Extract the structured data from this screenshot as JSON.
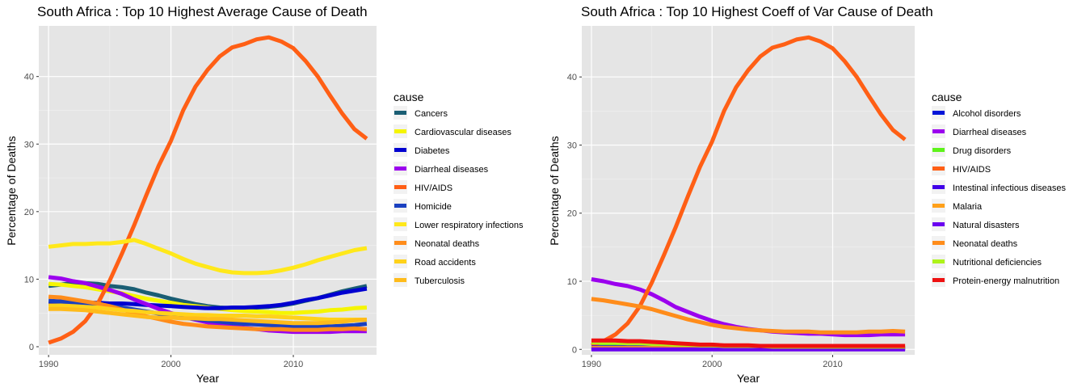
{
  "chart_data": [
    {
      "type": "line",
      "title": "South Africa : Top  10  Highest Average Cause of Death",
      "xlabel": "Year",
      "ylabel": "Percentage of Deaths",
      "xlim": [
        1989.2,
        2016.8
      ],
      "ylim": [
        -1.2,
        47.5
      ],
      "xticks": [
        1990,
        2000,
        2010
      ],
      "yticks": [
        0,
        10,
        20,
        30,
        40
      ],
      "grid": true,
      "legend_title": "cause",
      "legend_position": "right",
      "x": [
        1990,
        1991,
        1992,
        1993,
        1994,
        1995,
        1996,
        1997,
        1998,
        1999,
        2000,
        2001,
        2002,
        2003,
        2004,
        2005,
        2006,
        2007,
        2008,
        2009,
        2010,
        2011,
        2012,
        2013,
        2014,
        2015,
        2016
      ],
      "series": [
        {
          "name": "Cancers",
          "color": "#1a5e74",
          "values": [
            9.0,
            9.2,
            9.4,
            9.4,
            9.3,
            9.0,
            8.8,
            8.5,
            8.0,
            7.6,
            7.1,
            6.7,
            6.3,
            6.0,
            5.8,
            5.7,
            5.7,
            5.8,
            5.9,
            6.1,
            6.4,
            6.8,
            7.2,
            7.7,
            8.2,
            8.6,
            9.0
          ]
        },
        {
          "name": "Cardiovascular diseases",
          "color": "#f5f500",
          "values": [
            9.3,
            9.2,
            9.0,
            8.8,
            8.5,
            8.2,
            7.9,
            7.5,
            7.1,
            6.8,
            6.5,
            6.2,
            6.0,
            5.8,
            5.6,
            5.4,
            5.3,
            5.2,
            5.1,
            5.0,
            5.0,
            5.1,
            5.2,
            5.4,
            5.5,
            5.7,
            5.8
          ]
        },
        {
          "name": "Diabetes",
          "color": "#0000d0",
          "values": [
            6.3,
            6.4,
            6.5,
            6.5,
            6.5,
            6.4,
            6.4,
            6.3,
            6.2,
            6.1,
            6.0,
            5.9,
            5.8,
            5.7,
            5.7,
            5.8,
            5.8,
            5.9,
            6.0,
            6.2,
            6.5,
            6.9,
            7.2,
            7.6,
            8.0,
            8.3,
            8.6
          ]
        },
        {
          "name": "Diarrheal diseases",
          "color": "#9b00ee",
          "values": [
            10.3,
            10.1,
            9.7,
            9.4,
            8.9,
            8.4,
            7.8,
            7.0,
            6.3,
            5.6,
            5.0,
            4.4,
            4.0,
            3.6,
            3.2,
            3.0,
            2.8,
            2.6,
            2.4,
            2.3,
            2.2,
            2.2,
            2.2,
            2.2,
            2.3,
            2.3,
            2.3
          ]
        },
        {
          "name": "HIV/AIDS",
          "color": "#ff5f15",
          "values": [
            0.6,
            1.2,
            2.2,
            3.8,
            6.3,
            9.8,
            13.8,
            18.0,
            22.5,
            26.8,
            30.5,
            35.0,
            38.5,
            41.0,
            43.0,
            44.3,
            44.8,
            45.5,
            45.8,
            45.2,
            44.2,
            42.3,
            40.0,
            37.2,
            34.5,
            32.2,
            30.8
          ]
        },
        {
          "name": "Homicide",
          "color": "#1a40c0",
          "values": [
            6.8,
            6.7,
            6.6,
            6.4,
            6.2,
            6.0,
            5.8,
            5.5,
            5.2,
            4.9,
            4.6,
            4.3,
            4.1,
            3.9,
            3.7,
            3.5,
            3.4,
            3.3,
            3.2,
            3.1,
            3.0,
            3.0,
            3.0,
            3.0,
            3.1,
            3.2,
            3.4
          ]
        },
        {
          "name": "Lower respiratory infections",
          "color": "#ffe81a",
          "values": [
            14.8,
            15.0,
            15.2,
            15.2,
            15.3,
            15.3,
            15.5,
            15.8,
            15.2,
            14.5,
            13.8,
            13.0,
            12.3,
            11.8,
            11.3,
            11.0,
            10.9,
            10.9,
            11.0,
            11.3,
            11.7,
            12.2,
            12.8,
            13.3,
            13.8,
            14.3,
            14.6
          ]
        },
        {
          "name": "Neonatal deaths",
          "color": "#ff8c1a",
          "values": [
            7.4,
            7.3,
            7.0,
            6.7,
            6.4,
            6.0,
            5.5,
            5.0,
            4.5,
            4.1,
            3.7,
            3.4,
            3.2,
            3.0,
            2.9,
            2.8,
            2.7,
            2.6,
            2.6,
            2.6,
            2.5,
            2.5,
            2.5,
            2.6,
            2.6,
            2.7,
            2.6
          ]
        },
        {
          "name": "Road accidents",
          "color": "#ffd21a",
          "values": [
            6.1,
            6.1,
            6.0,
            5.9,
            5.8,
            5.6,
            5.4,
            5.3,
            5.1,
            5.0,
            4.9,
            4.8,
            4.7,
            4.7,
            4.6,
            4.6,
            4.6,
            4.5,
            4.5,
            4.4,
            4.3,
            4.2,
            4.1,
            4.0,
            4.0,
            4.0,
            4.0
          ]
        },
        {
          "name": "Tuberculosis",
          "color": "#ffbb1a",
          "values": [
            5.6,
            5.6,
            5.5,
            5.4,
            5.2,
            5.0,
            4.8,
            4.6,
            4.4,
            4.3,
            4.3,
            4.2,
            4.2,
            4.1,
            4.1,
            4.0,
            3.9,
            3.8,
            3.7,
            3.6,
            3.5,
            3.5,
            3.5,
            3.6,
            3.7,
            3.9,
            4.0
          ]
        }
      ]
    },
    {
      "type": "line",
      "title": "South Africa : Top  10  Highest Coeff of Var Cause of Death",
      "xlabel": "Year",
      "ylabel": "Percentage of Deaths",
      "xlim": [
        1989.2,
        2016.8
      ],
      "ylim": [
        -0.8,
        47.5
      ],
      "xticks": [
        1990,
        2000,
        2010
      ],
      "yticks": [
        0,
        10,
        20,
        30,
        40
      ],
      "grid": true,
      "legend_title": "cause",
      "legend_position": "right",
      "x": [
        1990,
        1991,
        1992,
        1993,
        1994,
        1995,
        1996,
        1997,
        1998,
        1999,
        2000,
        2001,
        2002,
        2003,
        2004,
        2005,
        2006,
        2007,
        2008,
        2009,
        2010,
        2011,
        2012,
        2013,
        2014,
        2015,
        2016
      ],
      "series": [
        {
          "name": "Alcohol disorders",
          "color": "#0014d8",
          "values": [
            0.1,
            0.1,
            0.1,
            0.1,
            0.1,
            0.1,
            0.1,
            0.1,
            0.1,
            0.1,
            0.1,
            0.1,
            0.1,
            0.1,
            0.1,
            0.1,
            0.1,
            0.1,
            0.1,
            0.1,
            0.1,
            0.1,
            0.1,
            0.1,
            0.1,
            0.1,
            0.1
          ]
        },
        {
          "name": "Diarrheal diseases",
          "color": "#9b00ee",
          "values": [
            10.3,
            10.0,
            9.6,
            9.3,
            8.8,
            8.1,
            7.2,
            6.2,
            5.5,
            4.8,
            4.2,
            3.7,
            3.3,
            3.0,
            2.8,
            2.6,
            2.5,
            2.4,
            2.3,
            2.3,
            2.2,
            2.1,
            2.1,
            2.1,
            2.2,
            2.2,
            2.2
          ]
        },
        {
          "name": "Drug disorders",
          "color": "#5ef31a",
          "values": [
            0.6,
            0.6,
            0.5,
            0.4,
            0.3,
            0.3,
            0.3,
            0.3,
            0.3,
            0.3,
            0.3,
            0.3,
            0.3,
            0.3,
            0.3,
            0.3,
            0.3,
            0.3,
            0.3,
            0.3,
            0.3,
            0.3,
            0.3,
            0.3,
            0.3,
            0.3,
            0.3
          ]
        },
        {
          "name": "HIV/AIDS",
          "color": "#ff5f15",
          "values": [
            0.6,
            1.2,
            2.2,
            3.8,
            6.3,
            9.8,
            13.8,
            18.0,
            22.5,
            26.8,
            30.5,
            35.0,
            38.5,
            41.0,
            43.0,
            44.3,
            44.8,
            45.5,
            45.8,
            45.2,
            44.2,
            42.3,
            40.0,
            37.2,
            34.5,
            32.2,
            30.8
          ]
        },
        {
          "name": "Intestinal infectious diseases",
          "color": "#4000e8",
          "values": [
            0.3,
            0.3,
            0.3,
            0.3,
            0.3,
            0.3,
            0.2,
            0.2,
            0.2,
            0.2,
            0.2,
            0.2,
            0.2,
            0.2,
            0.2,
            0.2,
            0.2,
            0.2,
            0.2,
            0.2,
            0.2,
            0.2,
            0.2,
            0.2,
            0.2,
            0.2,
            0.2
          ]
        },
        {
          "name": "Malaria",
          "color": "#ffa01a",
          "values": [
            0.2,
            0.2,
            0.2,
            0.2,
            0.2,
            0.2,
            0.2,
            0.2,
            0.2,
            0.2,
            0.2,
            0.2,
            0.2,
            0.2,
            0.2,
            0.2,
            0.2,
            0.2,
            0.2,
            0.2,
            0.2,
            0.2,
            0.2,
            0.2,
            0.2,
            0.2,
            0.2
          ]
        },
        {
          "name": "Natural disasters",
          "color": "#6a00f0",
          "values": [
            0.0,
            0.0,
            0.0,
            0.0,
            0.0,
            0.0,
            0.0,
            0.0,
            0.0,
            0.0,
            0.0,
            0.0,
            0.0,
            0.0,
            0.0,
            0.0,
            0.0,
            0.0,
            0.0,
            0.0,
            0.0,
            0.0,
            0.0,
            0.0,
            0.0,
            0.0,
            0.0
          ]
        },
        {
          "name": "Neonatal deaths",
          "color": "#ff8c1a",
          "values": [
            7.4,
            7.2,
            6.9,
            6.6,
            6.3,
            5.9,
            5.4,
            4.9,
            4.4,
            4.0,
            3.6,
            3.3,
            3.1,
            2.9,
            2.8,
            2.7,
            2.6,
            2.6,
            2.6,
            2.5,
            2.5,
            2.5,
            2.5,
            2.6,
            2.6,
            2.7,
            2.6
          ]
        },
        {
          "name": "Nutritional deficiencies",
          "color": "#aef31a",
          "values": [
            1.0,
            1.0,
            1.0,
            0.9,
            0.9,
            0.8,
            0.8,
            0.7,
            0.7,
            0.6,
            0.6,
            0.5,
            0.5,
            0.5,
            0.5,
            0.4,
            0.4,
            0.4,
            0.4,
            0.4,
            0.4,
            0.4,
            0.4,
            0.4,
            0.4,
            0.4,
            0.4
          ]
        },
        {
          "name": "Protein-energy malnutrition",
          "color": "#ee1111",
          "values": [
            1.3,
            1.3,
            1.3,
            1.2,
            1.2,
            1.1,
            1.0,
            0.9,
            0.8,
            0.7,
            0.7,
            0.6,
            0.6,
            0.6,
            0.5,
            0.5,
            0.5,
            0.5,
            0.5,
            0.5,
            0.5,
            0.5,
            0.5,
            0.5,
            0.5,
            0.5,
            0.5
          ]
        }
      ]
    }
  ]
}
